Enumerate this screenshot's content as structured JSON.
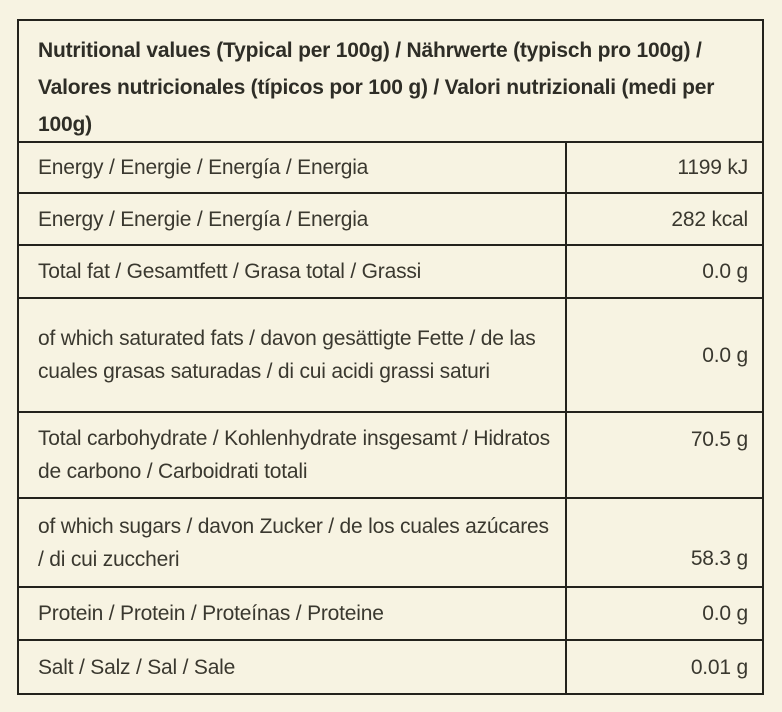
{
  "table": {
    "header": "Nutritional values (Typical per 100g) / Nährwerte (typisch pro 100g) / Valores nutricionales (típicos por 100 g) / Valori nutrizionali (medi per 100g)",
    "rows": [
      {
        "label": "Energy / Energie / Energía / Energia",
        "value": "1199 kJ"
      },
      {
        "label": "Energy / Energie / Energía / Energia",
        "value": "282 kcal"
      },
      {
        "label": "Total fat / Gesamtfett / Grasa total / Grassi",
        "value": "0.0 g"
      },
      {
        "label": "of which saturated fats /  davon gesättigte Fette / de las cuales grasas saturadas / di cui acidi grassi saturi",
        "value": "0.0 g"
      },
      {
        "label": "Total carbohydrate / Kohlenhydrate insgesamt / Hidratos de carbono / Carboidrati totali",
        "value": "70.5 g"
      },
      {
        "label": "of which sugars / davon Zucker / de los cuales azúcares / di cui zuccheri",
        "value": "58.3 g"
      },
      {
        "label": "Protein / Protein / Proteínas / Proteine",
        "value": "0.0 g"
      },
      {
        "label": "Salt / Salz / Sal / Sale",
        "value": "0.01 g"
      }
    ],
    "colors": {
      "background": "#f7f3e2",
      "border": "#23221c",
      "text": "#3a382f",
      "header_text": "#2e2d26"
    }
  }
}
